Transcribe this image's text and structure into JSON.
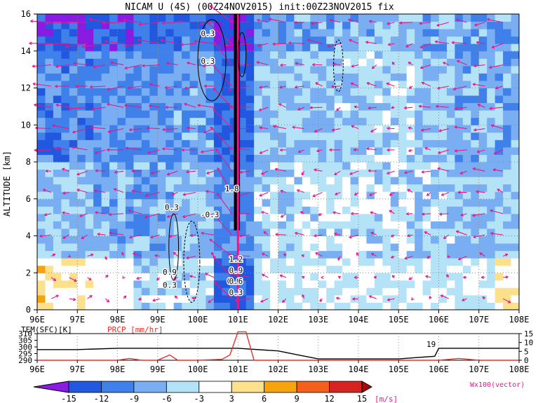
{
  "chart_data": [
    {
      "type": "heatmap",
      "title": "NICAM U (4S) (00Z24NOV2015) init:00Z23NOV2015 fix",
      "ylabel": "ALTITUDE [km]",
      "x_ticks": [
        "96E",
        "97E",
        "98E",
        "99E",
        "100E",
        "101E",
        "102E",
        "103E",
        "104E",
        "105E",
        "106E",
        "107E",
        "108E"
      ],
      "y_ticks": [
        "0",
        "2",
        "4",
        "6",
        "8",
        "10",
        "12",
        "14",
        "16"
      ],
      "xlim": [
        96,
        108
      ],
      "ylim": [
        0,
        16
      ],
      "grid": true,
      "contour_labels": [
        "0.3",
        "0.3",
        "0.3",
        "-0.3",
        "1.8",
        "0.9",
        "0.3",
        "0.6",
        "1.2",
        "0.9",
        "0.6",
        "0.3"
      ],
      "vector_label": "Wx100(vector)",
      "vector_color": "#e8178a",
      "u_wind_by_layer": [
        {
          "altitude_km": [
            0,
            3
          ],
          "values": [
            4,
            3,
            0,
            -4,
            -4,
            -12,
            -3,
            -3,
            -3,
            -3,
            -3,
            -3,
            3
          ]
        },
        {
          "altitude_km": [
            3,
            8
          ],
          "values": [
            -6,
            -6,
            -7,
            -8,
            -6,
            -9,
            -5,
            -4,
            -4,
            -4,
            -5,
            -6,
            -6
          ]
        },
        {
          "altitude_km": [
            8,
            14
          ],
          "values": [
            -10,
            -10,
            -9,
            -9,
            -8,
            -12,
            -6,
            -6,
            -5,
            -4,
            -6,
            -7,
            -7
          ]
        },
        {
          "altitude_km": [
            14,
            16
          ],
          "values": [
            -14,
            -14,
            -13,
            -12,
            -11,
            -15,
            -9,
            -8,
            -7,
            -6,
            -7,
            -8,
            -8
          ]
        }
      ]
    },
    {
      "type": "line",
      "series": [
        {
          "name": "TEM(SFC)[K]",
          "color": "#000000",
          "x": [
            96,
            97,
            98,
            99,
            100,
            101,
            102,
            102.5,
            103,
            104,
            105,
            105.9,
            106,
            107,
            108
          ],
          "values": [
            298,
            298,
            299,
            299,
            299,
            299,
            297,
            294,
            291,
            291,
            291,
            293,
            299,
            299,
            299
          ]
        },
        {
          "name": "PRCP [mm/hr]",
          "color": "#e8302a",
          "x": [
            96,
            98,
            98.3,
            98.6,
            99,
            99.3,
            99.5,
            100,
            100.6,
            100.8,
            101,
            101.2,
            101.4,
            102,
            103,
            106,
            106.5,
            107,
            108
          ],
          "values": [
            0,
            0,
            1,
            0,
            0,
            3,
            0,
            0,
            0.5,
            3,
            16,
            16,
            0,
            0,
            0,
            0,
            1,
            0,
            0
          ]
        }
      ],
      "left_axis_ticks": [
        "290",
        "295",
        "300",
        "305",
        "310"
      ],
      "right_axis_ticks": [
        "0",
        "5",
        "10",
        "15"
      ],
      "left_ylim": [
        290,
        310
      ],
      "right_ylim": [
        0,
        15
      ],
      "annotation": "19",
      "x_ticks": [
        "96E",
        "97E",
        "98E",
        "99E",
        "100E",
        "101E",
        "102E",
        "103E",
        "104E",
        "105E",
        "106E",
        "107E",
        "108E"
      ]
    },
    {
      "type": "colorbar",
      "tick_labels": [
        "-15",
        "-12",
        "-9",
        "-6",
        "-3",
        "3",
        "6",
        "9",
        "12",
        "15"
      ],
      "unit": "[m/s]",
      "colors": [
        "#8a1be2",
        "#2257e0",
        "#3f80ea",
        "#7aaef2",
        "#b4e2f7",
        "#ffffff",
        "#fce08c",
        "#f7a30e",
        "#f5601d",
        "#d42321",
        "#a70a0a"
      ]
    }
  ]
}
